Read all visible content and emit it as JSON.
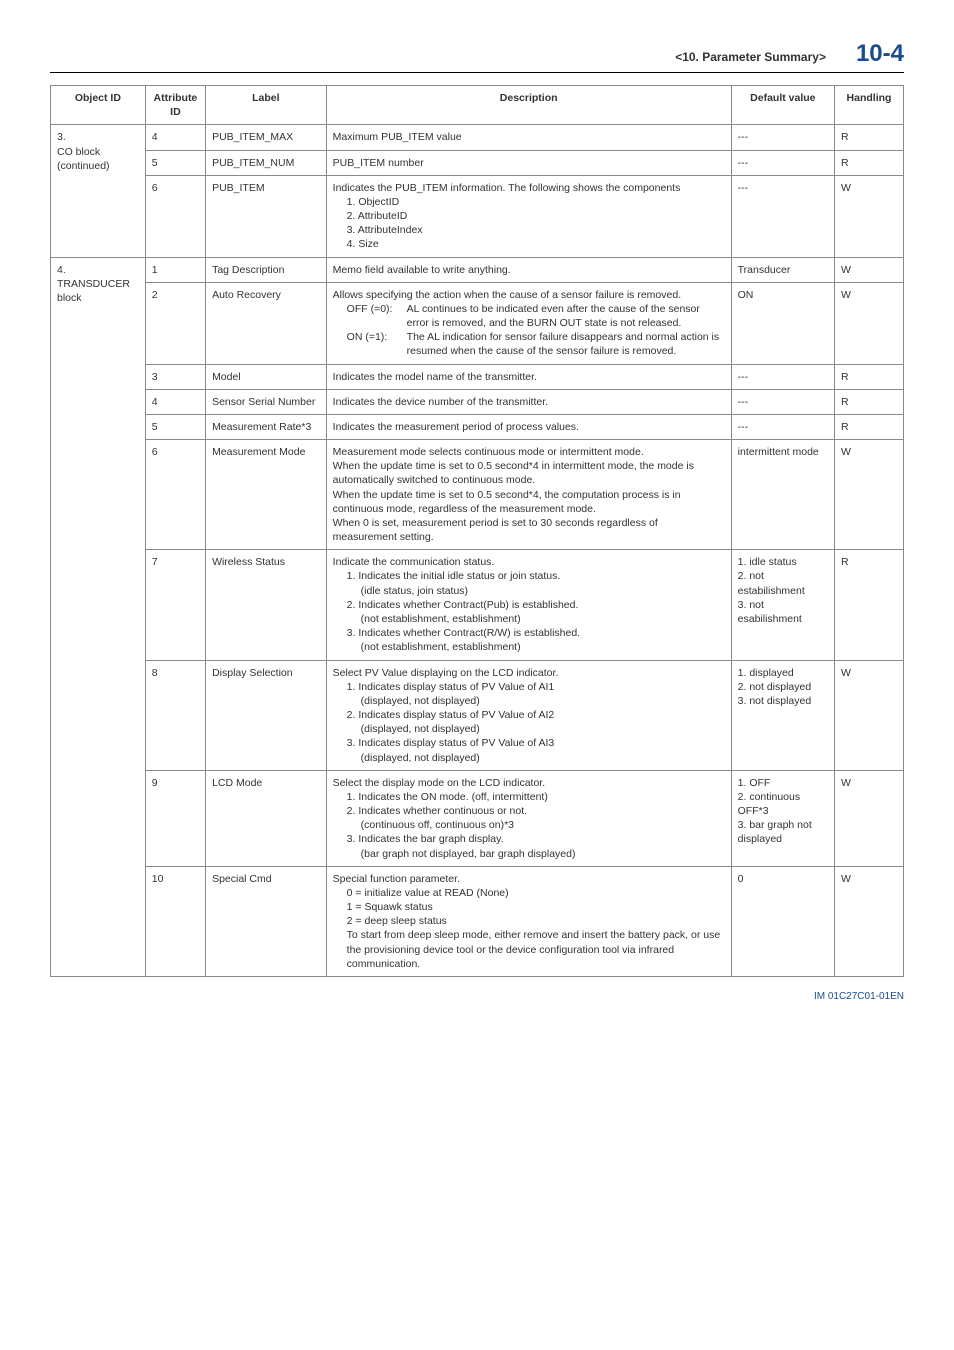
{
  "header": {
    "chapter": "<10.  Parameter Summary>",
    "page": "10-4"
  },
  "thead": {
    "obj": "Object ID",
    "attr": "Attribute ID",
    "label": "Label",
    "desc": "Description",
    "def": "Default value",
    "hnd": "Handling"
  },
  "r1": {
    "obj": "3.\nCO block (continued)",
    "attr": "4",
    "label": "PUB_ITEM_MAX",
    "desc": "Maximum PUB_ITEM value",
    "def": "---",
    "hnd": "R"
  },
  "r2": {
    "attr": "5",
    "label": "PUB_ITEM_NUM",
    "desc": "PUB_ITEM number",
    "def": "---",
    "hnd": "R"
  },
  "r3": {
    "attr": "6",
    "label": "PUB_ITEM",
    "d0": "Indicates the PUB_ITEM information. The following shows the components",
    "d1": "1. ObjectID",
    "d2": "2. AttributeID",
    "d3": "3. AttributeIndex",
    "d4": "4. Size",
    "def": "---",
    "hnd": "W"
  },
  "r4": {
    "obj": "4.\nTRANSDUCER block",
    "attr": "1",
    "label": "Tag Description",
    "desc": "Memo field available to write anything.",
    "def": "Transducer",
    "hnd": "W"
  },
  "r5": {
    "attr": "2",
    "label": "Auto Recovery",
    "d0": "Allows specifying the action when the cause of a sensor failure is removed.",
    "k1": "OFF (=0):",
    "v1": "AL continues to be indicated even after the cause of the sensor error is removed, and the BURN OUT state is not released.",
    "k2": "ON (=1):",
    "v2": "The AL indication for sensor failure disappears and normal action is resumed when the cause of the sensor failure is removed.",
    "def": "ON",
    "hnd": "W"
  },
  "r6": {
    "attr": "3",
    "label": "Model",
    "desc": "Indicates the model name of the transmitter.",
    "def": "---",
    "hnd": "R"
  },
  "r7": {
    "attr": "4",
    "label": "Sensor Serial Number",
    "desc": "Indicates the device number of the transmitter.",
    "def": "---",
    "hnd": "R"
  },
  "r8": {
    "attr": "5",
    "label": "Measurement Rate*3",
    "desc": "Indicates the measurement period of process values.",
    "def": "---",
    "hnd": "R"
  },
  "r9": {
    "attr": "6",
    "label": "Measurement Mode",
    "desc": "Measurement mode selects continuous mode or intermittent mode.\nWhen the update time is set to 0.5 second*4 in intermittent mode, the mode is automatically switched to continuous mode.\nWhen the update time is set to 0.5 second*4, the computation process is in continuous mode, regardless of the measurement mode.\nWhen 0 is set, measurement period is set to 30 seconds regardless of measurement setting.",
    "def": "intermittent mode",
    "hnd": "W"
  },
  "r10": {
    "attr": "7",
    "label": "Wireless Status",
    "d0": "Indicate the communication status.",
    "d1": "1. Indicates the initial idle status or join status.",
    "s1": "(idle status, join status)",
    "d2": "2. Indicates whether Contract(Pub) is established.",
    "s2": "(not establishment, establishment)",
    "d3": "3. Indicates whether Contract(R/W) is established.",
    "s3": "(not establishment, establishment)",
    "def": "1. idle status\n2. not estabilishment\n3. not esabilishment",
    "hnd": "R"
  },
  "r11": {
    "attr": "8",
    "label": "Display Selection",
    "d0": "Select PV Value displaying on the LCD indicator.",
    "d1": "1. Indicates display status of PV Value of AI1",
    "s1": "(displayed, not displayed)",
    "d2": "2. Indicates display status of PV Value of AI2",
    "s2": "(displayed, not displayed)",
    "d3": "3. Indicates display status of PV Value of AI3",
    "s3": "(displayed, not displayed)",
    "def": "1. displayed\n2. not displayed\n3. not displayed",
    "hnd": "W"
  },
  "r12": {
    "attr": "9",
    "label": "LCD Mode",
    "d0": "Select the display mode on the LCD indicator.",
    "d1": "1. Indicates the ON mode. (off, intermittent)",
    "d2": "2. Indicates whether continuous or not.",
    "s2": "(continuous off, continuous on)*3",
    "d3": "3. Indicates the bar graph display.",
    "s3": "(bar graph not displayed, bar graph displayed)",
    "def": "1. OFF\n2. continuous OFF*3\n3. bar graph not displayed",
    "hnd": "W"
  },
  "r13": {
    "attr": "10",
    "label": "Special Cmd",
    "d0": "Special function parameter.",
    "d1": "0 = initialize value at READ (None)",
    "d2": "1 = Squawk status",
    "d3": "2 = deep sleep status",
    "d4": "To start from deep sleep mode, either remove and insert the battery pack, or use the provisioning device tool or the device configuration tool via infrared communication.",
    "def": "0",
    "hnd": "W"
  },
  "footer": "IM 01C27C01-01EN"
}
